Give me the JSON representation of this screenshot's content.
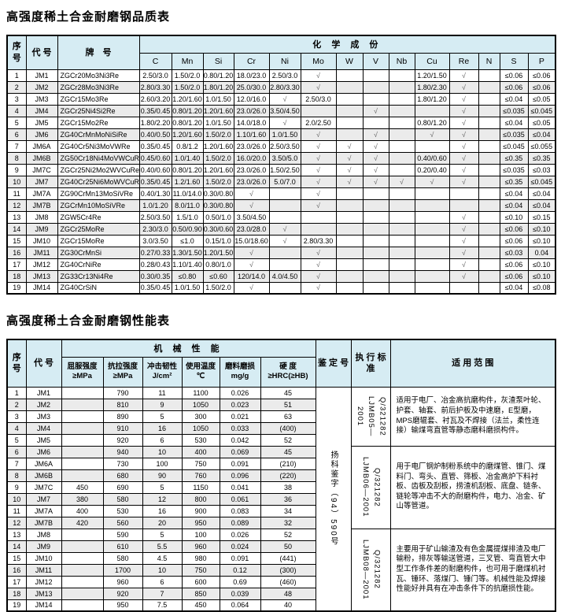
{
  "table1": {
    "title": "高强度稀土合金耐磨钢品质表",
    "headers": {
      "seq": "序\n号",
      "code": "代 号",
      "grade": "牌　号",
      "chem_group": "化 学 成 份",
      "elements": [
        "C",
        "Mn",
        "Si",
        "Cr",
        "Ni",
        "Mo",
        "W",
        "V",
        "Nb",
        "Cu",
        "Re",
        "N",
        "S",
        "P"
      ]
    },
    "rows": [
      {
        "seq": "1",
        "code": "JM1",
        "grade": "ZGCr20Mo3Ni3Re",
        "values": [
          "2.50/3.0",
          "1.50/2.0",
          "0.80/1.20",
          "18.0/23.0",
          "2.50/3.0",
          "√",
          "",
          "",
          "",
          "1.20/1.50",
          "√",
          "",
          "≤0.06",
          "≤0.06"
        ]
      },
      {
        "seq": "2",
        "code": "JM2",
        "grade": "ZGCr28Mo3Ni3Re",
        "values": [
          "2.80/3.30",
          "1.50/2.0",
          "1.80/1.20",
          "25.0/30.0",
          "2.80/3.30",
          "√",
          "",
          "",
          "",
          "1.80/2.30",
          "√",
          "",
          "≤0.06",
          "≤0.06"
        ]
      },
      {
        "seq": "3",
        "code": "JM3",
        "grade": "ZGCr15Mo3Re",
        "values": [
          "2.60/3.20",
          "1.20/1.60",
          "1.0/1.50",
          "12.0/16.0",
          "√",
          "2.50/3.0",
          "",
          "",
          "",
          "1.80/1.20",
          "√",
          "",
          "≤0.04",
          "≤0.05"
        ]
      },
      {
        "seq": "4",
        "code": "JM4",
        "grade": "ZGCr25Ni4Si2Re",
        "values": [
          "0.35/0.45",
          "0.80/1.20",
          "1.20/1.60",
          "23.0/26.0",
          "3.50/4.50",
          "",
          "",
          "√",
          "",
          "",
          "√",
          "",
          "≤0.035",
          "≤0.045"
        ]
      },
      {
        "seq": "5",
        "code": "JM5",
        "grade": "ZGCr15Mo2Re",
        "values": [
          "1.80/2.20",
          "0.80/1.20",
          "1.0/1.50",
          "14.0/18.0",
          "√",
          "2.0/2.50",
          "",
          "",
          "",
          "0.80/1.20",
          "√",
          "",
          "≤0.04",
          "≤0.05"
        ]
      },
      {
        "seq": "6",
        "code": "JM6",
        "grade": "ZG40CrMnMoNiSiRe",
        "values": [
          "0.40/0.50",
          "1.20/1.60",
          "1.50/2.0",
          "1.10/1.60",
          "1.0/1.50",
          "√",
          "",
          "√",
          "",
          "√",
          "√",
          "",
          "≤0.035",
          "≤0.04"
        ]
      },
      {
        "seq": "7",
        "code": "JM6A",
        "grade": "ZG40Cr5Ni3MoVWRe",
        "values": [
          "0.35/0.45",
          "0.8/1.2",
          "1.20/1.60",
          "23.0/26.0",
          "2.50/3.50",
          "√",
          "√",
          "√",
          "",
          "",
          "√",
          "",
          "≤0.045",
          "≤0.055"
        ]
      },
      {
        "seq": "8",
        "code": "JM6B",
        "grade": "ZG50Cr18Ni4MoVWCuRe",
        "values": [
          "0.45/0.60",
          "1.0/1.40",
          "1.50/2.0",
          "16.0/20.0",
          "3.50/5.0",
          "√",
          "√",
          "√",
          "",
          "0.40/0.60",
          "√",
          "",
          "≤0.35",
          "≤0.35"
        ]
      },
      {
        "seq": "9",
        "code": "JM7C",
        "grade": "ZGCr25Ni2Mo2WVCuRe",
        "values": [
          "0.40/0.60",
          "0.80/1.20",
          "1.20/1.60",
          "23.0/26.0",
          "1.50/2.50",
          "√",
          "√",
          "√",
          "",
          "0.20/0.40",
          "√",
          "",
          "≤0.035",
          "≤0.03"
        ]
      },
      {
        "seq": "10",
        "code": "JM7",
        "grade": "ZG40Cr25Ni6MoWVCuRe",
        "values": [
          "0.35/0.45",
          "1.2/1.60",
          "1.50/2.0",
          "23.0/26.0",
          "5.0/7.0",
          "√",
          "√",
          "√",
          "√",
          "√",
          "√",
          "",
          "≤0.35",
          "≤0.045"
        ]
      },
      {
        "seq": "11",
        "code": "JM7A",
        "grade": "ZG90CrMn13MoSiVRe",
        "values": [
          "0.40/1.30",
          "11.0/14.0",
          "0.30/0.80",
          "√",
          "",
          "√",
          "",
          "",
          "",
          "",
          "",
          "",
          "≤0.04",
          "≤0.04"
        ]
      },
      {
        "seq": "12",
        "code": "JM7B",
        "grade": "ZGCrMn10MoSiVRe",
        "values": [
          "1.0/1.20",
          "8.0/11.0",
          "0.30/0.80",
          "√",
          "",
          "√",
          "",
          "",
          "",
          "",
          "",
          "",
          "≤0.04",
          "≤0.04"
        ]
      },
      {
        "seq": "13",
        "code": "JM8",
        "grade": "ZGW5Cr4Re",
        "values": [
          "2.50/3.50",
          "1.5/1.0",
          "0.50/1.0",
          "3.50/4.50",
          "",
          "",
          "",
          "",
          "",
          "",
          "√",
          "",
          "≤0.10",
          "≤0.15"
        ]
      },
      {
        "seq": "14",
        "code": "JM9",
        "grade": "ZGCr25MoRe",
        "values": [
          "2.30/3.0",
          "0.50/0.90",
          "0.30/0.60",
          "23.0/28.0",
          "√",
          "",
          "",
          "",
          "",
          "",
          "√",
          "",
          "≤0.06",
          "≤0.10"
        ]
      },
      {
        "seq": "15",
        "code": "JM10",
        "grade": "ZGCr15MoRe",
        "values": [
          "3.0/3.50",
          "≤1.0",
          "0.15/1.0",
          "15.0/18.60",
          "√",
          "2.80/3.30",
          "",
          "",
          "",
          "",
          "√",
          "",
          "≤0.06",
          "≤0.10"
        ]
      },
      {
        "seq": "16",
        "code": "JM11",
        "grade": "ZG30CrMnSi",
        "values": [
          "0.27/0.33",
          "1.30/1.50",
          "1.20/1.50",
          "√",
          "",
          "√",
          "",
          "",
          "",
          "",
          "√",
          "",
          "≤0.03",
          "0.04"
        ]
      },
      {
        "seq": "17",
        "code": "JM12",
        "grade": "ZG40CrNiRe",
        "values": [
          "0.28/0.43",
          "1.10/1.40",
          "0.80/1.0",
          "√",
          "",
          "√",
          "",
          "",
          "",
          "",
          "√",
          "",
          "≤0.06",
          "≤0.10"
        ]
      },
      {
        "seq": "18",
        "code": "JM13",
        "grade": "ZG33Cr13Ni4Re",
        "values": [
          "0.30/0.35",
          "≤0.80",
          "≤0.60",
          "120/14.0",
          "4.0/4.50",
          "√",
          "",
          "",
          "",
          "",
          "√",
          "",
          "≤0.06",
          "≤0.10"
        ]
      },
      {
        "seq": "19",
        "code": "JM14",
        "grade": "ZG40CrSiN",
        "values": [
          "0.35/0.45",
          "1.0/1.50",
          "1.50/2.0",
          "√",
          "",
          "√",
          "",
          "",
          "",
          "",
          "",
          "",
          "≤0.04",
          "≤0.08"
        ]
      }
    ]
  },
  "table2": {
    "title": "高强度稀土合金耐磨钢性能表",
    "headers": {
      "seq": "序\n号",
      "code": "代 号",
      "mech_group": "机 械 性 能",
      "mech_columns": [
        "屈服强度\n≥MPa",
        "抗拉强度\n≥MPa",
        "冲击韧性\nJ/cm²",
        "使用温度\n℃",
        "磨料磨损\nmg/g",
        "硬 度\n≥HRC(≥HB)"
      ],
      "identification": "鉴 定 号",
      "standard": "执 行 标 准",
      "scope": "适 用 范 围"
    },
    "identification": "扬科鉴字（94）590号",
    "standards": [
      {
        "code": "Q/321282",
        "number": "LJMB05—2001",
        "row_span": 5,
        "scope": "适用于电厂、冶金高抗磨构件，灰渣泵叶轮、护套、轴套、前后护板及中速磨，E型磨，MPS磨辊套、衬瓦及不焊接（法兰，柔性连接）输煤弯直管等静态磨料磨损构件。"
      },
      {
        "code": "Q/321282",
        "number": "LJMB06—2001",
        "row_span": 7,
        "scope": "用于电厂钢炉制粉系统中的磨煤管、锥门、煤料门、弯头、直管、筛板、冶金高炉下料衬板、齿板及刮板，捞渣机刮板、底盘、链条、链轮等冲击不大的耐磨构件，电力、冶金、矿山等管道。"
      },
      {
        "code": "Q/321282",
        "number": "LJMB08—2001",
        "row_span": 7,
        "scope": "主要用于矿山输渣及有色金属提煤排渣及电厂输粉，排灰等输送管道，三叉管、弯直管大中型工作条件差的耐磨构件，也可用于磨煤机衬瓦、锤环、落煤门、锤门等。机械性能及焊接性能好并具有在冲击条件下的抗磨损性能。"
      }
    ],
    "rows": [
      {
        "seq": "1",
        "code": "JM1",
        "values": [
          "",
          "790",
          "11",
          "1100",
          "0.026",
          "45"
        ]
      },
      {
        "seq": "2",
        "code": "JM2",
        "values": [
          "",
          "810",
          "9",
          "1050",
          "0.023",
          "51"
        ]
      },
      {
        "seq": "3",
        "code": "JM3",
        "values": [
          "",
          "890",
          "5",
          "300",
          "0.021",
          "63"
        ]
      },
      {
        "seq": "4",
        "code": "JM4",
        "values": [
          "",
          "910",
          "16",
          "1050",
          "0.033",
          "(400)"
        ]
      },
      {
        "seq": "5",
        "code": "JM5",
        "values": [
          "",
          "920",
          "6",
          "530",
          "0.042",
          "52"
        ]
      },
      {
        "seq": "6",
        "code": "JM6",
        "values": [
          "",
          "940",
          "10",
          "400",
          "0.069",
          "45"
        ]
      },
      {
        "seq": "7",
        "code": "JM6A",
        "values": [
          "",
          "730",
          "100",
          "750",
          "0.091",
          "(210)"
        ]
      },
      {
        "seq": "8",
        "code": "JM6B",
        "values": [
          "",
          "680",
          "90",
          "760",
          "0.096",
          "(220)"
        ]
      },
      {
        "seq": "9",
        "code": "JM7C",
        "values": [
          "450",
          "690",
          "5",
          "1150",
          "0.041",
          "38"
        ]
      },
      {
        "seq": "10",
        "code": "JM7",
        "values": [
          "380",
          "580",
          "12",
          "800",
          "0.061",
          "36"
        ]
      },
      {
        "seq": "11",
        "code": "JM7A",
        "values": [
          "400",
          "530",
          "16",
          "900",
          "0.083",
          "34"
        ]
      },
      {
        "seq": "12",
        "code": "JM7B",
        "values": [
          "420",
          "560",
          "20",
          "950",
          "0.089",
          "32"
        ]
      },
      {
        "seq": "13",
        "code": "JM8",
        "values": [
          "",
          "590",
          "5",
          "100",
          "0.026",
          "52"
        ]
      },
      {
        "seq": "14",
        "code": "JM9",
        "values": [
          "",
          "610",
          "5.5",
          "960",
          "0.024",
          "50"
        ]
      },
      {
        "seq": "15",
        "code": "JM10",
        "values": [
          "",
          "580",
          "4.5",
          "980",
          "0.091",
          "(441)"
        ]
      },
      {
        "seq": "16",
        "code": "JM11",
        "values": [
          "",
          "1700",
          "10",
          "750",
          "0.12",
          "(300)"
        ]
      },
      {
        "seq": "17",
        "code": "JM12",
        "values": [
          "",
          "960",
          "6",
          "600",
          "0.69",
          "(460)"
        ]
      },
      {
        "seq": "18",
        "code": "JM13",
        "values": [
          "",
          "920",
          "7",
          "850",
          "0.039",
          "48"
        ]
      },
      {
        "seq": "19",
        "code": "JM14",
        "values": [
          "",
          "950",
          "7.5",
          "450",
          "0.064",
          "40"
        ]
      }
    ]
  }
}
